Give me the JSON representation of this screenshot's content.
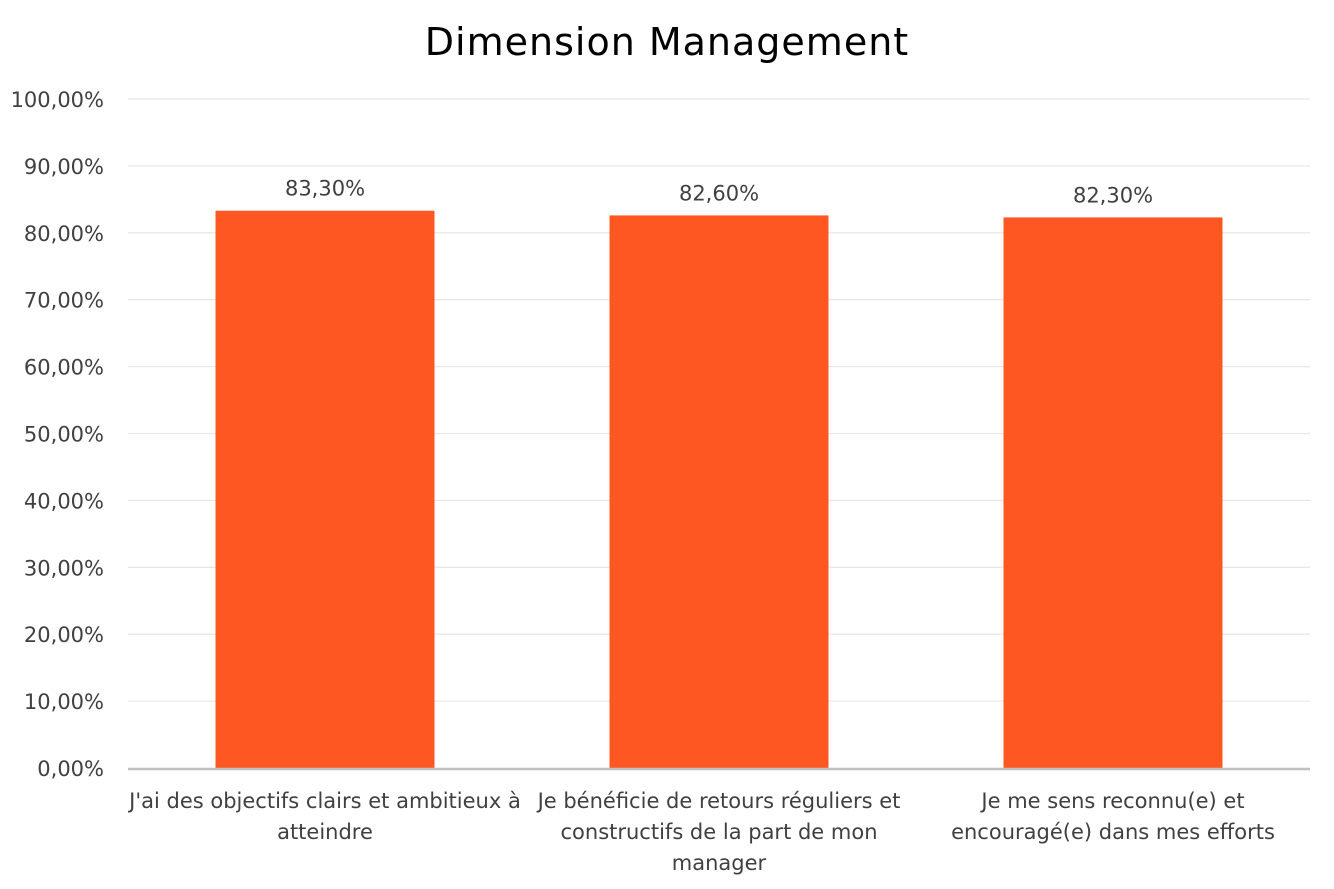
{
  "chart_data": {
    "type": "bar",
    "title": "Dimension Management",
    "categories": [
      "J'ai des objectifs clairs et ambitieux à atteindre",
      "Je bénéficie de retours réguliers et constructifs de la part de mon manager",
      "Je me sens reconnu(e) et encouragé(e) dans mes efforts"
    ],
    "category_lines": [
      [
        "J'ai des objectifs clairs et ambitieux à",
        "atteindre"
      ],
      [
        "Je bénéficie de retours réguliers et",
        "constructifs de la part de mon",
        "manager"
      ],
      [
        "Je me sens reconnu(e) et",
        "encouragé(e) dans mes efforts"
      ]
    ],
    "values": [
      83.3,
      82.6,
      82.3
    ],
    "value_labels": [
      "83,30%",
      "82,60%",
      "82,30%"
    ],
    "yticks": [
      "0,00%",
      "10,00%",
      "20,00%",
      "30,00%",
      "40,00%",
      "50,00%",
      "60,00%",
      "70,00%",
      "80,00%",
      "90,00%",
      "100,00%"
    ],
    "ylim": [
      0,
      100
    ],
    "xlabel": "",
    "ylabel": "",
    "grid": true,
    "legend": "none",
    "colors": {
      "bar": "#ff5722",
      "grid": "#e8e8e8",
      "axis": "#bfbfbf",
      "tick_text": "#404040",
      "label_text": "#404040"
    }
  }
}
